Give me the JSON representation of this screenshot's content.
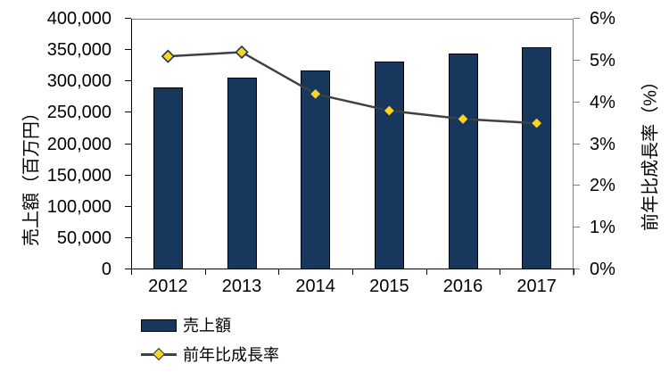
{
  "chart_data": {
    "type": "bar+line combo",
    "categories": [
      "2012",
      "2013",
      "2014",
      "2015",
      "2016",
      "2017"
    ],
    "series": [
      {
        "name": "売上額",
        "type": "bar",
        "axis": "left",
        "values": [
          291000,
          306000,
          318000,
          331000,
          344000,
          355000
        ],
        "color": "#17375D",
        "border_color": "#000000"
      },
      {
        "name": "前年比成長率",
        "type": "line",
        "axis": "right",
        "values": [
          5.1,
          5.2,
          4.2,
          3.8,
          3.6,
          3.5
        ],
        "line_color": "#404040",
        "marker": "diamond",
        "marker_fill": "#FFD320",
        "marker_border": "#17375D"
      }
    ],
    "left_axis": {
      "label": "売上額（百万円）",
      "min": 0,
      "max": 400000,
      "step": 50000,
      "tick_labels": [
        "0",
        "50,000",
        "100,000",
        "150,000",
        "200,000",
        "250,000",
        "300,000",
        "350,000",
        "400,000"
      ]
    },
    "right_axis": {
      "label": "前年比成長率（%）",
      "min": 0,
      "max": 6,
      "step": 1,
      "tick_labels": [
        "0%",
        "1%",
        "2%",
        "3%",
        "4%",
        "5%",
        "6%"
      ]
    },
    "legend": {
      "position": "bottom-left",
      "items": [
        {
          "label": "売上額",
          "swatch": "bar"
        },
        {
          "label": "前年比成長率",
          "swatch": "line-diamond"
        }
      ]
    },
    "grid": "top line only",
    "colors": {
      "axis_black": "#000000",
      "axis_gray": "#808080",
      "background": "#ffffff",
      "text": "#000000"
    }
  }
}
